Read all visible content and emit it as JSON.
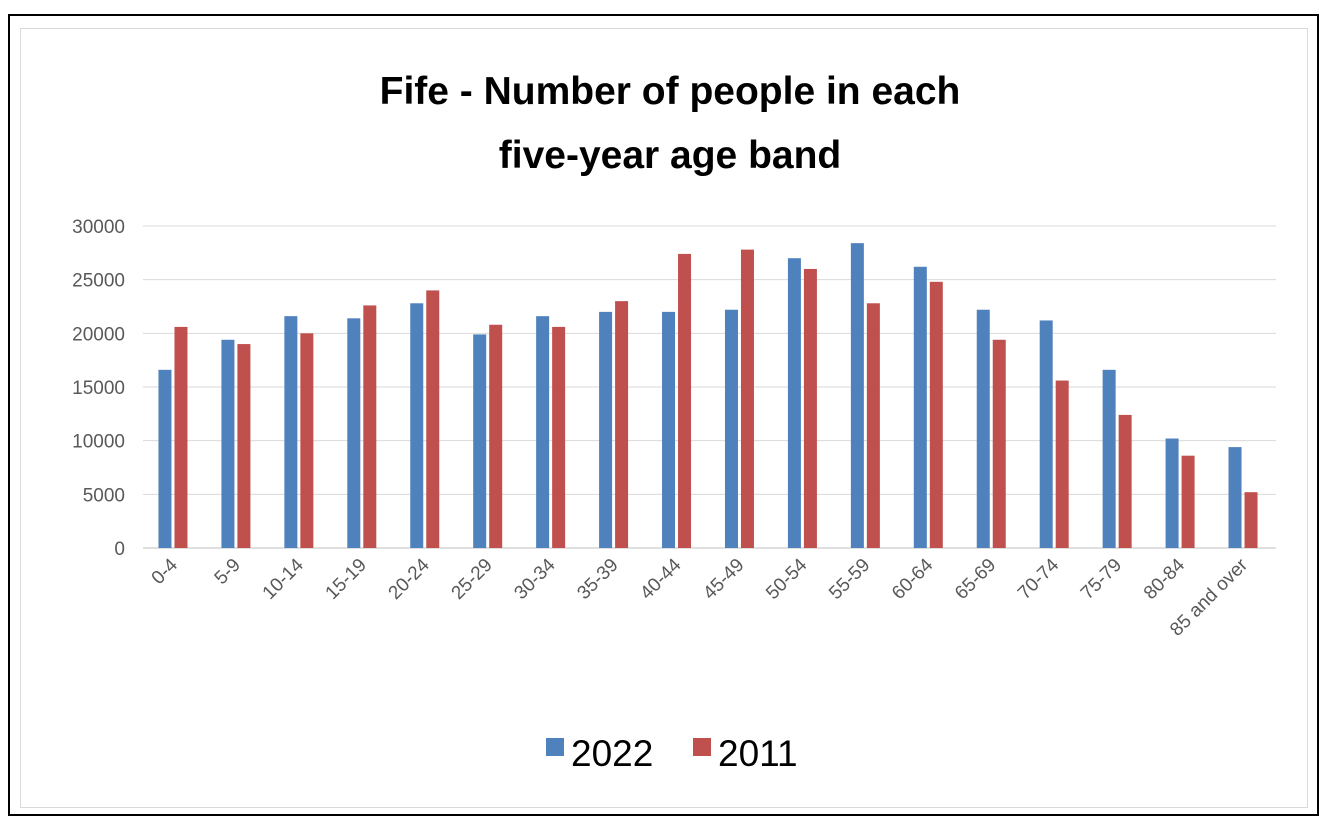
{
  "chart_data": {
    "type": "bar",
    "title_line1": "Fife - Number of people in each",
    "title_line2": "five-year age band",
    "xlabel": "",
    "ylabel": "",
    "ylim": [
      0,
      30000
    ],
    "yticks": [
      0,
      5000,
      10000,
      15000,
      20000,
      25000,
      30000
    ],
    "grid": true,
    "legend_position": "bottom",
    "categories": [
      "0-4",
      "5-9",
      "10-14",
      "15-19",
      "20-24",
      "25-29",
      "30-34",
      "35-39",
      "40-44",
      "45-49",
      "50-54",
      "55-59",
      "60-64",
      "65-69",
      "70-74",
      "75-79",
      "80-84",
      "85 and over"
    ],
    "series": [
      {
        "name": "2022",
        "color": "#4f81bd",
        "values": [
          16600,
          19400,
          21600,
          21400,
          22800,
          19900,
          21600,
          22000,
          22000,
          22200,
          27000,
          28400,
          26200,
          22200,
          21200,
          16600,
          10200,
          9400
        ]
      },
      {
        "name": "2011",
        "color": "#c0504d",
        "values": [
          20600,
          19000,
          20000,
          22600,
          24000,
          20800,
          20600,
          23000,
          27400,
          27800,
          26000,
          22800,
          24800,
          19400,
          15600,
          12400,
          8600,
          5200
        ]
      }
    ]
  }
}
